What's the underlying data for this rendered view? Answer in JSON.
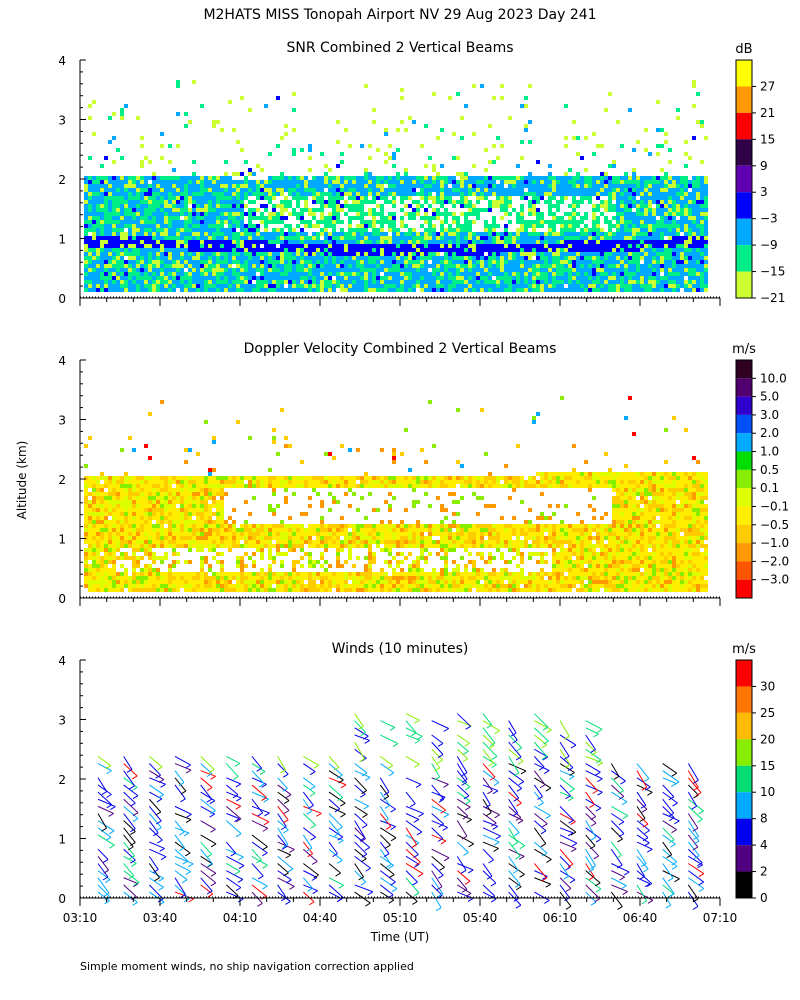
{
  "figure": {
    "title": "M2HATS MISS Tonopah Airport NV  29 Aug 2023 Day 241",
    "ylabel": "Altitude (km)",
    "xlabel": "Time (UT)",
    "footnote": "Simple moment winds, no ship navigation correction applied"
  },
  "chart_data": [
    {
      "type": "heatmap",
      "title": "SNR Combined 2 Vertical Beams",
      "colorbar_units": "dB",
      "colorbar_labels": [
        "27",
        "21",
        "15",
        "9",
        "3",
        "−3",
        "−9",
        "−15",
        "−21"
      ],
      "colorbar_colors": [
        "#ffff00",
        "#ff9900",
        "#ff0000",
        "#300048",
        "#6000b0",
        "#0000ff",
        "#00a8ff",
        "#00ee88",
        "#ccff33"
      ],
      "y_ticks": [
        "0",
        "1",
        "2",
        "3",
        "4"
      ],
      "ylim": [
        0,
        4
      ],
      "xlim": [
        "03:10",
        "07:10"
      ],
      "layers": [
        {
          "from_km": 0.1,
          "to_km": 2.1,
          "value_db": -12
        },
        {
          "from_km": 0.9,
          "to_km": 1.05,
          "value_db": -3
        },
        {
          "from_km": 1.9,
          "to_km": 2.05,
          "value_db": -9
        }
      ]
    },
    {
      "type": "heatmap",
      "title": "Doppler Velocity Combined 2 Vertical Beams",
      "colorbar_units": "m/s",
      "colorbar_labels": [
        "10.0",
        "5.0",
        "3.0",
        "2.0",
        "1.0",
        "0.5",
        "0.1",
        "−0.1",
        "−0.5",
        "−1.0",
        "−2.0",
        "−3.0"
      ],
      "colorbar_colors": [
        "#300020",
        "#500070",
        "#3000cc",
        "#0050ff",
        "#00aaff",
        "#00dd00",
        "#88ee00",
        "#ddff00",
        "#ffee00",
        "#ffcc00",
        "#ff9900",
        "#ff5500",
        "#ff0000"
      ],
      "y_ticks": [
        "0",
        "1",
        "2",
        "3",
        "4"
      ],
      "ylim": [
        0,
        4
      ],
      "xlim": [
        "03:10",
        "07:10"
      ]
    },
    {
      "type": "scatter",
      "title": "Winds (10 minutes)",
      "colorbar_units": "m/s",
      "colorbar_labels": [
        "30",
        "25",
        "20",
        "15",
        "10",
        "8",
        "4",
        "2",
        "0"
      ],
      "colorbar_colors": [
        "#ff0000",
        "#ff7700",
        "#ffbb00",
        "#88ee00",
        "#00dd77",
        "#00aaff",
        "#0000ee",
        "#500080",
        "#000000"
      ],
      "y_ticks": [
        "0",
        "1",
        "2",
        "3",
        "4"
      ],
      "ylim": [
        0,
        4
      ],
      "x_ticks": [
        "03:10",
        "03:40",
        "04:10",
        "04:40",
        "05:10",
        "05:40",
        "06:10",
        "06:40",
        "07:10"
      ],
      "xlim": [
        "03:10",
        "07:10"
      ],
      "interval_minutes": 10
    }
  ]
}
